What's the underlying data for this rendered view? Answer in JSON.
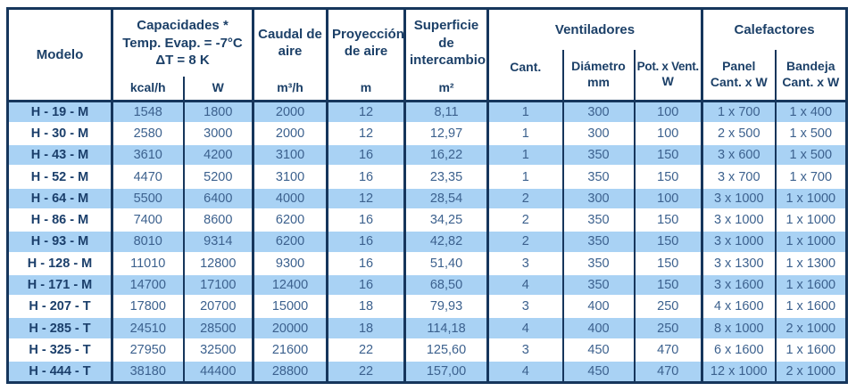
{
  "colors": {
    "border_navy": "#16365C",
    "header_text": "#1C4068",
    "data_text": "#3C618E",
    "model_text": "#1B3F6B",
    "row_blue": "#A9D2F4",
    "row_white": "#FFFFFF"
  },
  "table": {
    "header": {
      "modelo": "Modelo",
      "capacidades": {
        "title": "Capacidades *",
        "cond1": "Temp. Evap. = -7°C",
        "cond2": "ΔT = 8 K",
        "unit_kcal": "kcal/h",
        "unit_w": "W"
      },
      "caudal": {
        "title": "Caudal de aire",
        "unit": "m³/h"
      },
      "proyeccion": {
        "title": "Proyección de aire",
        "unit": "m"
      },
      "superficie": {
        "title": "Superficie de intercambio",
        "unit": "m²"
      },
      "ventiladores": {
        "title": "Ventiladores",
        "cant": "Cant.",
        "diametro": "Diámetro",
        "diametro_unit": "mm",
        "pot_vent": "Pot. x Vent.",
        "pot_vent_unit": "W"
      },
      "calefactores": {
        "title": "Calefactores",
        "panel": "Panel",
        "panel_unit": "Cant. x W",
        "bandeja": "Bandeja",
        "bandeja_unit": "Cant. x W"
      }
    },
    "column_names": [
      "model",
      "capacity-kcal",
      "capacity-w",
      "caudal-aire",
      "proyeccion-aire",
      "superficie-intercambio",
      "vent-cantidad",
      "vent-diametro",
      "vent-potencia",
      "calefactor-panel",
      "calefactor-bandeja"
    ],
    "rows": [
      [
        "H - 19 - M",
        "1548",
        "1800",
        "2000",
        "12",
        "8,11",
        "1",
        "300",
        "100",
        "1 x 700",
        "1 x 400"
      ],
      [
        "H - 30 - M",
        "2580",
        "3000",
        "2000",
        "12",
        "12,97",
        "1",
        "300",
        "100",
        "2 x 500",
        "1 x 500"
      ],
      [
        "H - 43 - M",
        "3610",
        "4200",
        "3100",
        "16",
        "16,22",
        "1",
        "350",
        "150",
        "3 x 600",
        "1 x 500"
      ],
      [
        "H - 52 - M",
        "4470",
        "5200",
        "3100",
        "16",
        "23,35",
        "1",
        "350",
        "150",
        "3 x 700",
        "1 x 700"
      ],
      [
        "H - 64 - M",
        "5500",
        "6400",
        "4000",
        "12",
        "28,54",
        "2",
        "300",
        "100",
        "3 x 1000",
        "1 x 1000"
      ],
      [
        "H - 86 - M",
        "7400",
        "8600",
        "6200",
        "16",
        "34,25",
        "2",
        "350",
        "150",
        "3 x 1000",
        "1 x 1000"
      ],
      [
        "H - 93 - M",
        "8010",
        "9314",
        "6200",
        "16",
        "42,82",
        "2",
        "350",
        "150",
        "3 x 1000",
        "1 x 1000"
      ],
      [
        "H - 128 - M",
        "11010",
        "12800",
        "9300",
        "16",
        "51,40",
        "3",
        "350",
        "150",
        "3 x 1300",
        "1 x 1300"
      ],
      [
        "H - 171 - M",
        "14700",
        "17100",
        "12400",
        "16",
        "68,50",
        "4",
        "350",
        "150",
        "3 x 1600",
        "1 x 1600"
      ],
      [
        "H - 207 - T",
        "17800",
        "20700",
        "15000",
        "18",
        "79,93",
        "3",
        "400",
        "250",
        "4 x 1600",
        "1 x 1600"
      ],
      [
        "H - 285 - T",
        "24510",
        "28500",
        "20000",
        "18",
        "114,18",
        "4",
        "400",
        "250",
        "8 x 1000",
        "2 x 1000"
      ],
      [
        "H - 325 - T",
        "27950",
        "32500",
        "21600",
        "22",
        "125,60",
        "3",
        "450",
        "470",
        "6 x 1600",
        "1 x 1600"
      ],
      [
        "H - 444 - T",
        "38180",
        "44400",
        "28800",
        "22",
        "157,00",
        "4",
        "450",
        "470",
        "12 x 1000",
        "2 x 1000"
      ]
    ]
  }
}
